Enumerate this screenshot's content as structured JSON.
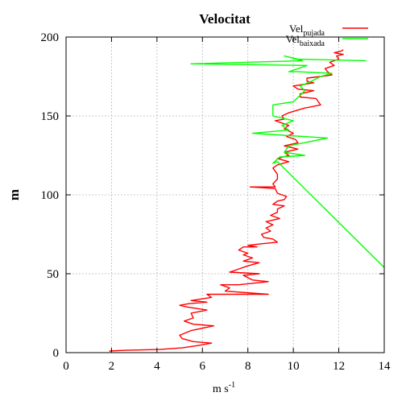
{
  "chart_data": {
    "type": "line",
    "title": "Velocitat",
    "xlabel": "m s",
    "xlabel_sup": "-1",
    "ylabel": "m",
    "xlim": [
      0,
      14
    ],
    "ylim": [
      0,
      200
    ],
    "xticks": [
      0,
      2,
      4,
      6,
      8,
      10,
      12,
      14
    ],
    "yticks": [
      0,
      50,
      100,
      150,
      200
    ],
    "grid": true,
    "legend_position": "top-right",
    "series": [
      {
        "name": "Vel",
        "name_sub": "pujada",
        "color": "#ff0000",
        "points": [
          [
            1.9,
            1
          ],
          [
            2.6,
            1.5
          ],
          [
            4.1,
            2
          ],
          [
            5.1,
            3
          ],
          [
            5.8,
            4.5
          ],
          [
            6.4,
            6
          ],
          [
            5.6,
            7
          ],
          [
            5.1,
            9
          ],
          [
            5.0,
            11
          ],
          [
            5.5,
            14
          ],
          [
            6.5,
            17
          ],
          [
            5.6,
            18
          ],
          [
            5.2,
            20
          ],
          [
            5.6,
            22
          ],
          [
            5.5,
            25
          ],
          [
            6.2,
            27
          ],
          [
            5.3,
            29
          ],
          [
            5.0,
            30
          ],
          [
            5.4,
            31
          ],
          [
            6.2,
            32
          ],
          [
            5.5,
            33
          ],
          [
            6.4,
            35
          ],
          [
            6.2,
            37
          ],
          [
            8.9,
            37
          ],
          [
            7.0,
            39
          ],
          [
            7.2,
            41
          ],
          [
            6.8,
            43
          ],
          [
            7.6,
            43
          ],
          [
            8.9,
            45
          ],
          [
            8.2,
            46
          ],
          [
            7.8,
            49
          ],
          [
            8.5,
            50
          ],
          [
            7.2,
            51
          ],
          [
            7.6,
            53
          ],
          [
            8.0,
            55
          ],
          [
            8.5,
            57
          ],
          [
            7.8,
            58
          ],
          [
            8.2,
            60
          ],
          [
            7.8,
            62
          ],
          [
            8.0,
            63
          ],
          [
            7.6,
            65
          ],
          [
            7.8,
            67
          ],
          [
            8.4,
            67
          ],
          [
            8.0,
            68
          ],
          [
            8.6,
            69
          ],
          [
            9.3,
            70
          ],
          [
            9.1,
            72
          ],
          [
            8.7,
            73
          ],
          [
            8.6,
            75
          ],
          [
            9.0,
            77
          ],
          [
            8.8,
            79
          ],
          [
            9.1,
            81
          ],
          [
            8.8,
            83
          ],
          [
            9.4,
            85
          ],
          [
            9.0,
            87
          ],
          [
            9.3,
            89
          ],
          [
            9.3,
            91
          ],
          [
            9.6,
            93
          ],
          [
            9.1,
            94
          ],
          [
            9.3,
            96
          ],
          [
            9.6,
            97
          ],
          [
            9.7,
            99
          ],
          [
            9.3,
            101
          ],
          [
            9.2,
            104
          ],
          [
            8.1,
            105
          ],
          [
            9.2,
            105
          ],
          [
            9.1,
            107
          ],
          [
            9.3,
            110
          ],
          [
            9.3,
            113
          ],
          [
            9.1,
            117
          ],
          [
            9.3,
            119
          ],
          [
            9.8,
            121
          ],
          [
            9.3,
            123
          ],
          [
            9.8,
            125
          ],
          [
            9.6,
            127
          ],
          [
            10.2,
            129
          ],
          [
            9.6,
            131
          ],
          [
            10.2,
            133
          ],
          [
            10.1,
            135
          ],
          [
            9.7,
            137
          ],
          [
            10.0,
            139
          ],
          [
            9.6,
            142
          ],
          [
            9.8,
            144
          ],
          [
            9.2,
            147
          ],
          [
            9.6,
            148
          ],
          [
            9.5,
            150
          ],
          [
            9.8,
            152
          ],
          [
            10.5,
            155
          ],
          [
            11.2,
            157
          ],
          [
            11.0,
            161
          ],
          [
            10.3,
            162
          ],
          [
            10.3,
            164
          ],
          [
            10.9,
            166
          ],
          [
            10.2,
            167
          ],
          [
            10.0,
            169
          ],
          [
            10.9,
            171
          ],
          [
            10.6,
            172
          ],
          [
            10.6,
            174
          ],
          [
            11.2,
            175
          ],
          [
            11.7,
            176
          ],
          [
            11.5,
            178
          ],
          [
            11.4,
            180
          ],
          [
            11.8,
            182
          ],
          [
            11.6,
            184
          ],
          [
            12.0,
            186
          ],
          [
            11.9,
            188
          ],
          [
            12.2,
            189
          ],
          [
            11.8,
            190
          ],
          [
            12.1,
            191
          ],
          [
            12.2,
            192
          ]
        ]
      },
      {
        "name": "Vel",
        "name_sub": "baixada",
        "color": "#00ff00",
        "points": [
          [
            14.0,
            54
          ],
          [
            9.3,
            121
          ],
          [
            9.1,
            120
          ],
          [
            9.4,
            124
          ],
          [
            10.5,
            125
          ],
          [
            9.6,
            127
          ],
          [
            9.8,
            131
          ],
          [
            11.5,
            136
          ],
          [
            8.2,
            139
          ],
          [
            9.8,
            141
          ],
          [
            9.5,
            144
          ],
          [
            10.0,
            147
          ],
          [
            9.1,
            150
          ],
          [
            9.1,
            157
          ],
          [
            10.0,
            159
          ],
          [
            10.3,
            163
          ],
          [
            10.5,
            166
          ],
          [
            10.3,
            169
          ],
          [
            10.8,
            172
          ],
          [
            11.2,
            175
          ],
          [
            11.7,
            177
          ],
          [
            10.2,
            178
          ],
          [
            9.8,
            178
          ],
          [
            10.6,
            182
          ],
          [
            5.5,
            183
          ],
          [
            10.4,
            185
          ],
          [
            9.6,
            188
          ],
          [
            10.2,
            186
          ],
          [
            13.2,
            185
          ]
        ]
      }
    ]
  }
}
